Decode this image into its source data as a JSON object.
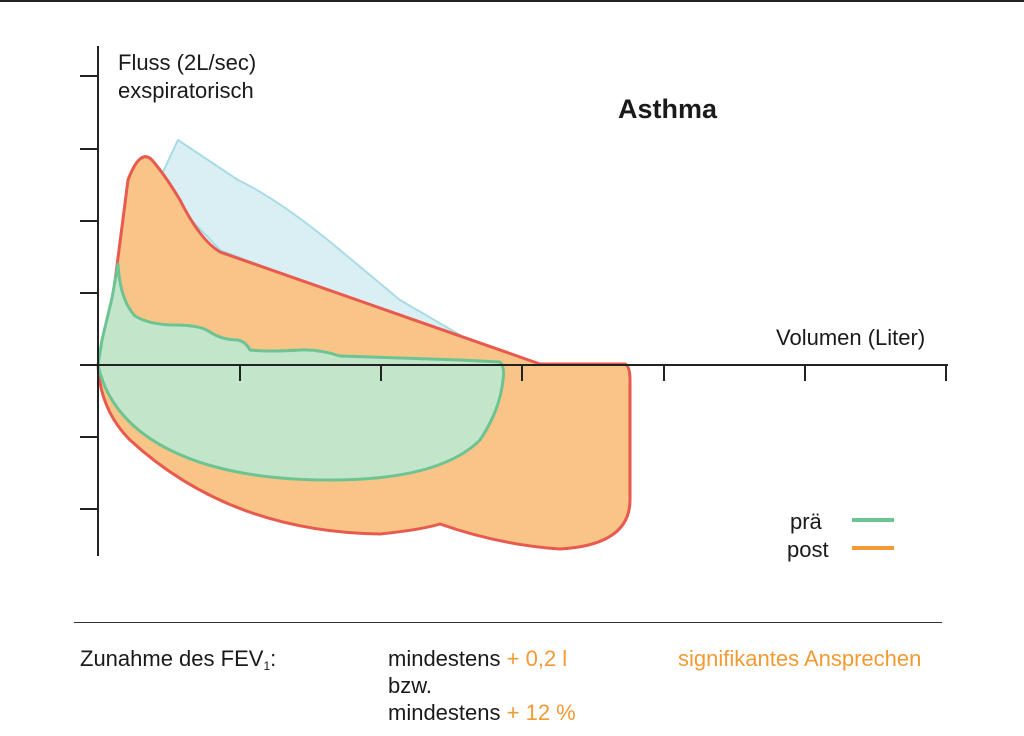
{
  "title": "Asthma",
  "axes": {
    "y_label_line1": "Fluss (2L/sec)",
    "y_label_line2": "exspiratorisch",
    "x_label": "Volumen (Liter)"
  },
  "legend": {
    "pre": "prä",
    "post": "post"
  },
  "colors": {
    "baseline_fill": "#daeff4",
    "baseline_stroke": "#a9dbe7",
    "post_fill": "#f9c487",
    "post_stroke": "#e95a4e",
    "pre_fill": "#c3e6cb",
    "pre_stroke": "#6cc492",
    "legend_pre": "#6cc492",
    "legend_post": "#f29a33",
    "accent_text": "#f29a33"
  },
  "footer": {
    "label_prefix": "Zunahme des FEV",
    "label_subscript": "1",
    "label_suffix": ":",
    "line1_text": "mindestens",
    "line1_value": "+ 0,2 l",
    "line2_text": "bzw.",
    "line3_text": "mindestens",
    "line3_value": "+ 12 %",
    "result": "signifikantes Ansprechen"
  }
}
